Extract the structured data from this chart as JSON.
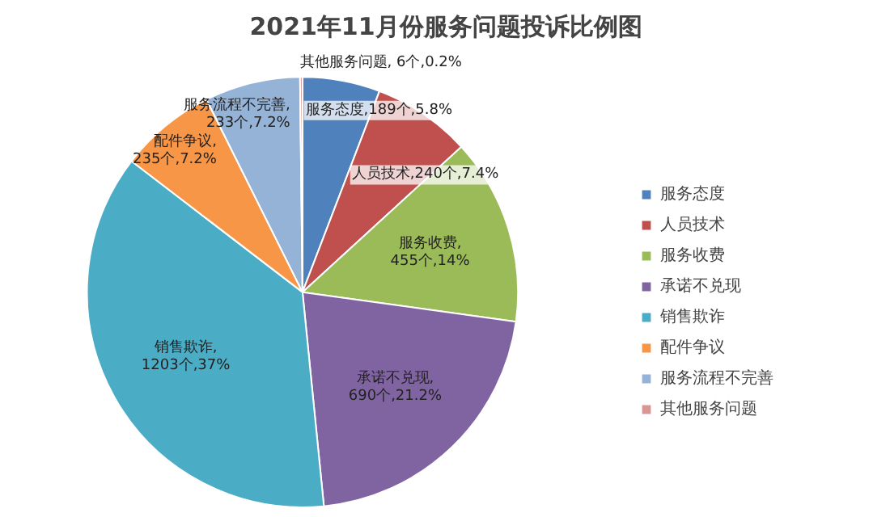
{
  "chart_data": {
    "type": "pie",
    "title": "2021年11月份服务问题投诉比例图",
    "categories": [
      "服务态度",
      "人员技术",
      "服务收费",
      "承诺不兑现",
      "销售欺诈",
      "配件争议",
      "服务流程不完善",
      "其他服务问题"
    ],
    "values": [
      189,
      240,
      455,
      690,
      1203,
      235,
      233,
      6
    ],
    "colors": [
      "#4f81bd",
      "#c0504d",
      "#9bbb59",
      "#8064a2",
      "#4bacc6",
      "#f79646",
      "#95b3d7",
      "#d99694"
    ],
    "value_labels": [
      "服务态度,189个,5.8%",
      "人员技术,240个,7.4%",
      "服务收费,\n455个,14%",
      "承诺不兑现,\n690个,21.2%",
      "销售欺诈,\n1203个,37%",
      "配件争议,\n235个,7.2%",
      "服务流程不完善,\n233个,7.2%",
      "其他服务问题, 6个,0.2%"
    ],
    "legend": "right"
  }
}
